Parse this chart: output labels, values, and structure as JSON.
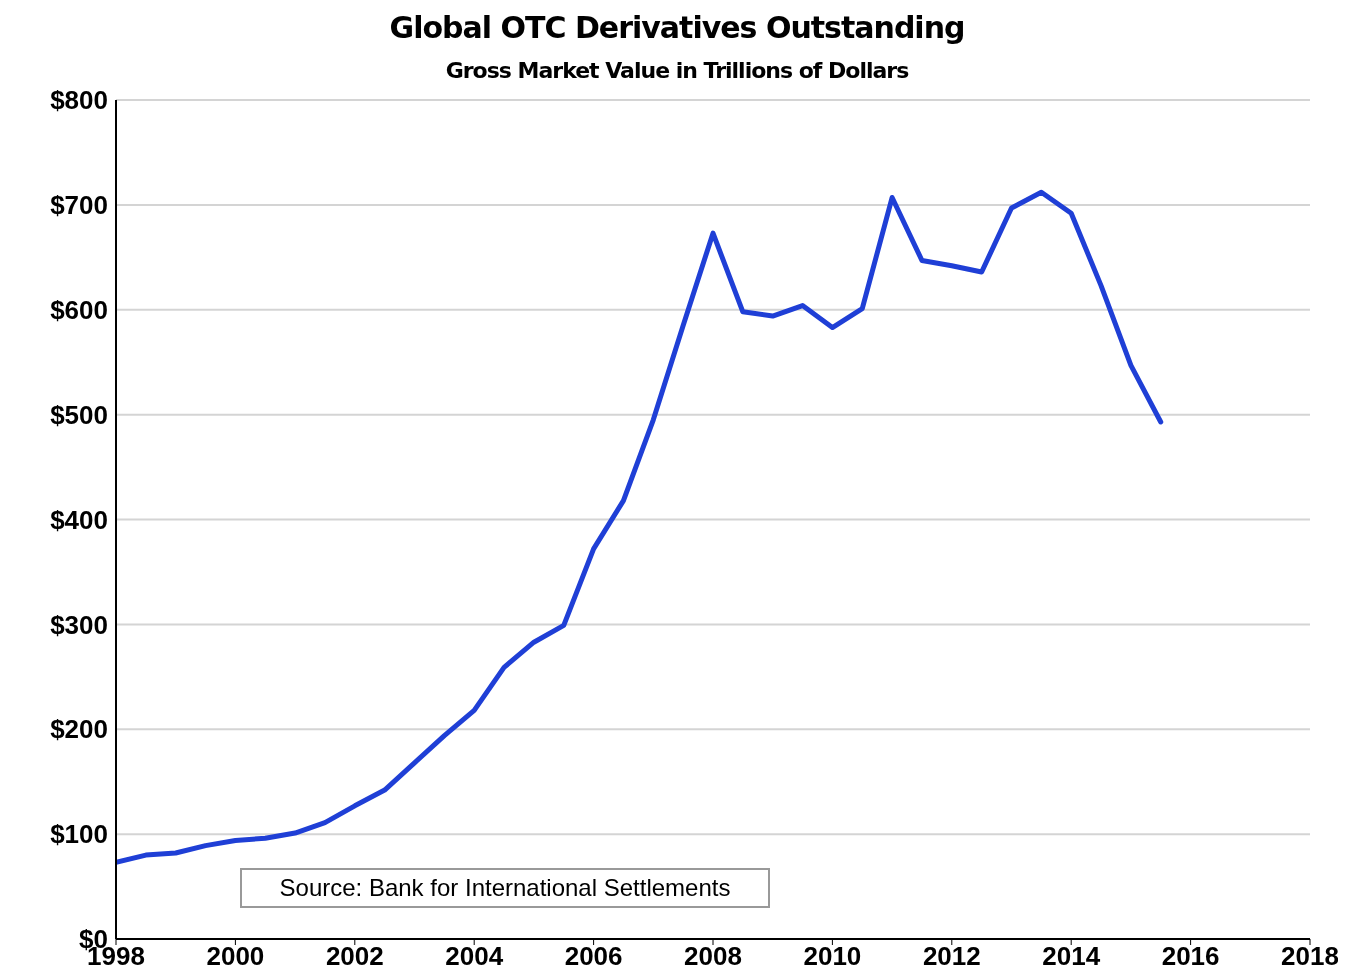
{
  "chart_data": {
    "type": "line",
    "title": "Global OTC Derivatives Outstanding",
    "subtitle": "Gross Market Value in Trillions of Dollars",
    "x": [
      1998,
      1998.5,
      1999,
      1999.5,
      2000,
      2000.5,
      2001,
      2001.5,
      2002,
      2002.5,
      2003,
      2003.5,
      2004,
      2004.5,
      2005,
      2005.5,
      2006,
      2006.5,
      2007,
      2007.5,
      2008,
      2008.5,
      2009,
      2009.5,
      2010,
      2010.5,
      2011,
      2011.5,
      2012,
      2012.5,
      2013,
      2013.5,
      2014,
      2014.5,
      2015,
      2015.5
    ],
    "series": [
      {
        "color": "#1f3fd6",
        "values": [
          73,
          80,
          82,
          89,
          94,
          96,
          101,
          111,
          127,
          142,
          168,
          194,
          218,
          259,
          283,
          299,
          372,
          418,
          495,
          585,
          673,
          598,
          594,
          604,
          583,
          601,
          707,
          647,
          642,
          636,
          697,
          712,
          692,
          623,
          547,
          493
        ]
      }
    ],
    "xlim": [
      1998,
      2018
    ],
    "xticks": [
      1998,
      2000,
      2002,
      2004,
      2006,
      2008,
      2010,
      2012,
      2014,
      2016,
      2018
    ],
    "ylim": [
      0,
      800
    ],
    "yticks": [
      {
        "value": 0,
        "label": "$0"
      },
      {
        "value": 100,
        "label": "$100"
      },
      {
        "value": 200,
        "label": "$200"
      },
      {
        "value": 300,
        "label": "$300"
      },
      {
        "value": 400,
        "label": "$400"
      },
      {
        "value": 500,
        "label": "$500"
      },
      {
        "value": 600,
        "label": "$600"
      },
      {
        "value": 700,
        "label": "$700"
      },
      {
        "value": 800,
        "label": "$800"
      }
    ],
    "grid": "y",
    "marker": "none",
    "line_style": "solid",
    "annotations": [
      "Source: Bank for International Settlements"
    ]
  }
}
